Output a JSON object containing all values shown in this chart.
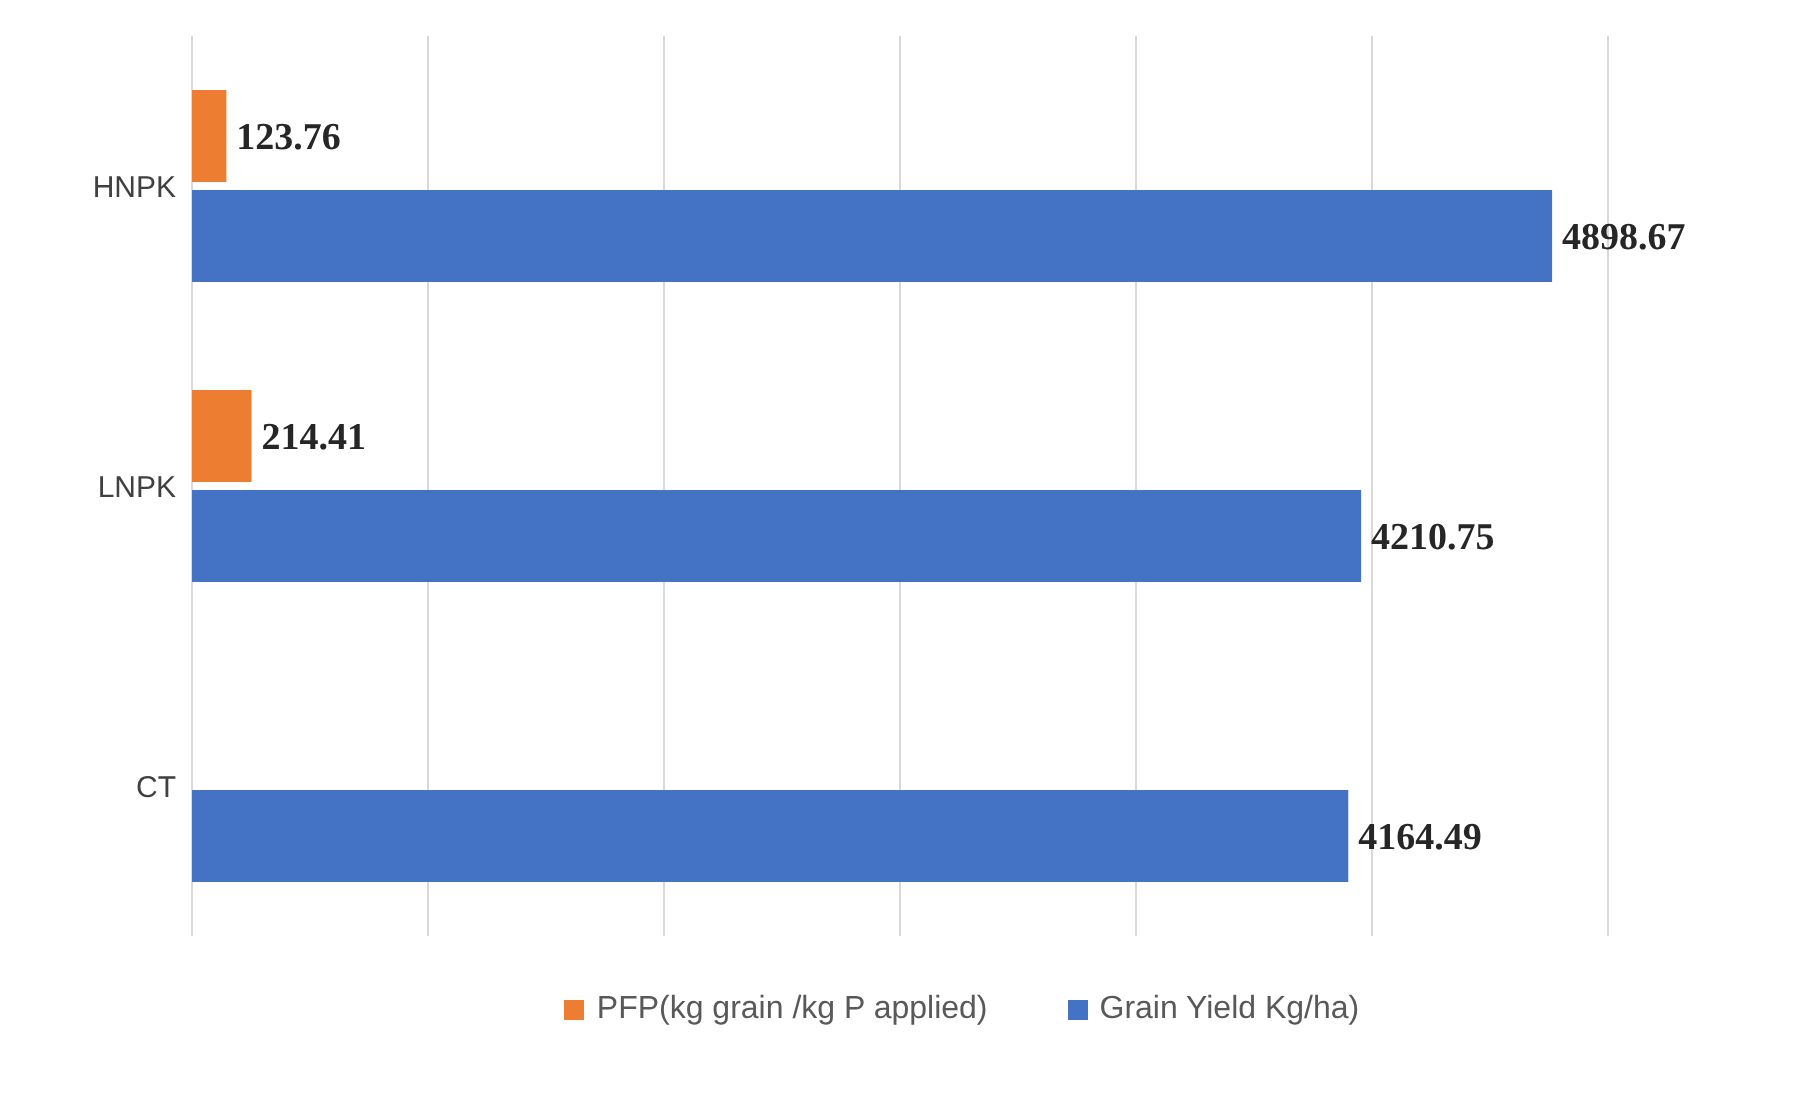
{
  "chart_data": {
    "type": "bar",
    "orientation": "horizontal",
    "categories": [
      "HNPK",
      "LNPK",
      "CT"
    ],
    "series": [
      {
        "name": "PFP(kg grain /kg P applied)",
        "color": "#ed7d31",
        "values": [
          123.76,
          214.41,
          null
        ]
      },
      {
        "name": "Grain Yield Kg/ha)",
        "color": "#4472c4",
        "values": [
          4898.67,
          4210.75,
          4164.49
        ]
      }
    ],
    "tick_labels": "y",
    "grid": "x",
    "legend": "bottom",
    "data_labels": true
  }
}
